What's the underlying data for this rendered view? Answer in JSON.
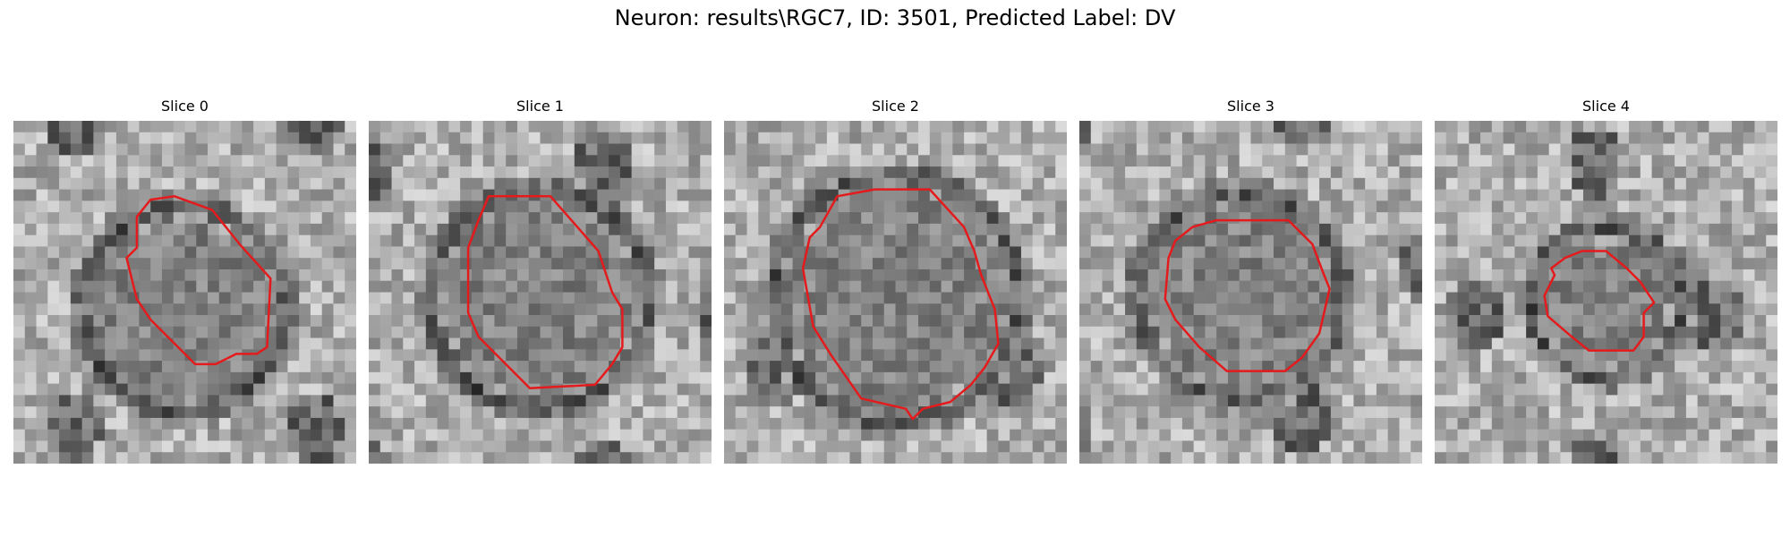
{
  "figure": {
    "title": "Neuron: results\\RGC7, ID: 3501, Predicted Label: DV",
    "contour_color": "#e41a1c"
  },
  "panels": [
    {
      "title": "Slice 0"
    },
    {
      "title": "Slice 1"
    },
    {
      "title": "Slice 2"
    },
    {
      "title": "Slice 3"
    },
    {
      "title": "Slice 4"
    }
  ]
}
